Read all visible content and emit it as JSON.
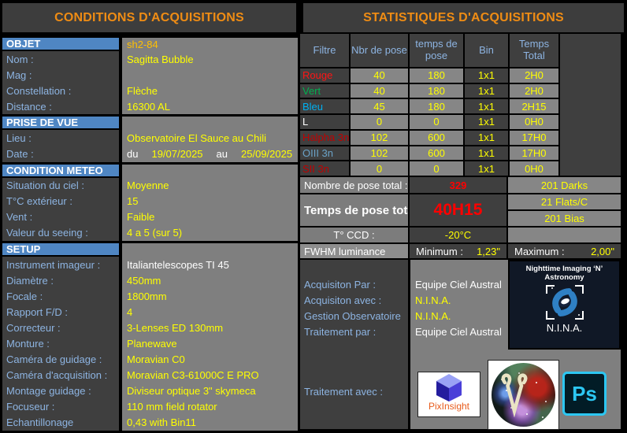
{
  "left": {
    "title": "CONDITIONS D'ACQUISITIONS",
    "rows": [
      {
        "type": "section",
        "label": "OBJET",
        "value": "sh2-84",
        "color": "#ffc000"
      },
      {
        "type": "field",
        "label": "Nom :",
        "value": "Sagitta Bubble",
        "color": "#ffff00"
      },
      {
        "type": "field",
        "label": "Mag :",
        "value": "",
        "color": "#ffff00"
      },
      {
        "type": "field",
        "label": "Constellation :",
        "value": "Flèche",
        "color": "#ffff00"
      },
      {
        "type": "field",
        "label": "Distance :",
        "value": "16300 AL",
        "color": "#ffff00"
      },
      {
        "type": "section",
        "label": "PRISE DE VUE",
        "value": "",
        "color": "#ffff00"
      },
      {
        "type": "field",
        "label": "Lieu :",
        "value": "Observatoire El Sauce au Chili",
        "color": "#ffff00"
      },
      {
        "type": "field",
        "label": "Date :",
        "value_parts": [
          {
            "text": "du",
            "color": "#ffffff"
          },
          {
            "text": "19/07/2025",
            "color": "#ffff00"
          },
          {
            "text": "au",
            "color": "#ffffff"
          },
          {
            "text": "25/09/2025",
            "color": "#ffff00"
          }
        ]
      },
      {
        "type": "section",
        "label": "CONDITION METEO",
        "value": "",
        "color": "#ffff00"
      },
      {
        "type": "field",
        "label": "Situation du ciel  :",
        "value": "Moyenne",
        "color": "#ffff00"
      },
      {
        "type": "field",
        "label": "T°C extérieur :",
        "value": "15",
        "color": "#ffff00"
      },
      {
        "type": "field",
        "label": "Vent :",
        "value": "Faible",
        "color": "#ffff00"
      },
      {
        "type": "field",
        "label": "Valeur du seeing  :",
        "value": "4 a 5   (sur 5)",
        "color": "#ffff00"
      },
      {
        "type": "section",
        "label": "SETUP",
        "value": "",
        "color": "#ffff00"
      },
      {
        "type": "field",
        "label": "Instrument imageur :",
        "value": "Italiantelescopes TI 45",
        "color": "#ffffff"
      },
      {
        "type": "field",
        "label": "Diamètre :",
        "value": "450mm",
        "color": "#ffff00"
      },
      {
        "type": "field",
        "label": "Focale :",
        "value": "1800mm",
        "color": "#ffff00"
      },
      {
        "type": "field",
        "label": "Rapport F/D :",
        "value": "4",
        "color": "#ffff00"
      },
      {
        "type": "field",
        "label": "Correcteur :",
        "value": "3-Lenses ED 130mm",
        "color": "#ffff00"
      },
      {
        "type": "field",
        "label": "Monture :",
        "value": "Planewave",
        "color": "#ffff00"
      },
      {
        "type": "field",
        "label": "Caméra de guidage :",
        "value": "Moravian C0",
        "color": "#ffff00"
      },
      {
        "type": "field",
        "label": "Caméra d'acquisition :",
        "value": "Moravian C3-61000C E PRO",
        "color": "#ffff00"
      },
      {
        "type": "field",
        "label": "Montage guidage :",
        "value": "Diviseur optique 3\" skymeca",
        "color": "#ffff00"
      },
      {
        "type": "field",
        "label": "Focuseur :",
        "value": "110 mm field rotator",
        "color": "#ffff00"
      },
      {
        "type": "field",
        "label": "Echantillonage",
        "value": "0,43 with Bin11",
        "color": "#ffff00"
      }
    ]
  },
  "right": {
    "title": "STATISTIQUES D'ACQUISITIONS",
    "table": {
      "headers": [
        "Filtre",
        "Nbr de pose",
        "temps de pose",
        "Bin",
        "Temps Total"
      ],
      "rows": [
        {
          "filter": "Rouge",
          "color": "#ff1414",
          "nbr": "40",
          "temps": "180",
          "bin": "1x1",
          "total": "2H0"
        },
        {
          "filter": "Vert",
          "color": "#00b050",
          "nbr": "40",
          "temps": "180",
          "bin": "1x1",
          "total": "2H0"
        },
        {
          "filter": "Bleu",
          "color": "#00b0f0",
          "nbr": "45",
          "temps": "180",
          "bin": "1x1",
          "total": "2H15"
        },
        {
          "filter": "L",
          "color": "#ffffff",
          "nbr": "0",
          "temps": "0",
          "bin": "1x1",
          "total": "0H0"
        },
        {
          "filter": "Halpha 3n",
          "color": "#c00000",
          "nbr": "102",
          "temps": "600",
          "bin": "1x1",
          "total": "17H0"
        },
        {
          "filter": "OIII 3n",
          "color": "#6ba3c8",
          "nbr": "102",
          "temps": "600",
          "bin": "1x1",
          "total": "17H0"
        },
        {
          "filter": "SII 3n",
          "color": "#c00000",
          "nbr": "0",
          "temps": "0",
          "bin": "1x1",
          "total": "0H0"
        }
      ]
    },
    "totals": {
      "count_label": "Nombre de pose total :",
      "count_value": "329",
      "time_label": "Temps de pose total",
      "time_value": "40H15",
      "accent_red": "#ff0000",
      "calibration": [
        "201 Darks",
        "21 Flats/C",
        "201 Bias"
      ],
      "ccd_label": "T° CCD :",
      "ccd_value": "-20°C",
      "fwhm_label": "FWHM luminance",
      "min_label": "Minimum :",
      "min_value": "1,23\"",
      "max_label": "Maximum :",
      "max_value": "2,00\""
    },
    "acquisition": {
      "rows": [
        {
          "label": "Acquisiton Par :",
          "value": "Equipe Ciel Austral",
          "color": "#ffffff"
        },
        {
          "label": "Acquisiton avec :",
          "value": "N.I.N.A.",
          "color": "#ffff00"
        },
        {
          "label": "Gestion Observatoire",
          "value": "N.I.N.A.",
          "color": "#ffff00"
        },
        {
          "label": "Traitement par :",
          "value": "Equipe Ciel Austral",
          "color": "#ffffff"
        }
      ],
      "processing_label": "Traitement avec :"
    },
    "logos": {
      "nina": {
        "line1": "Nighttime Imaging ‘N’",
        "line2": "Astronomy",
        "caption": "N.I.N.A."
      },
      "pixinsight": {
        "caption": "PixInsight"
      },
      "photoshop": {
        "caption": "Ps"
      }
    }
  }
}
